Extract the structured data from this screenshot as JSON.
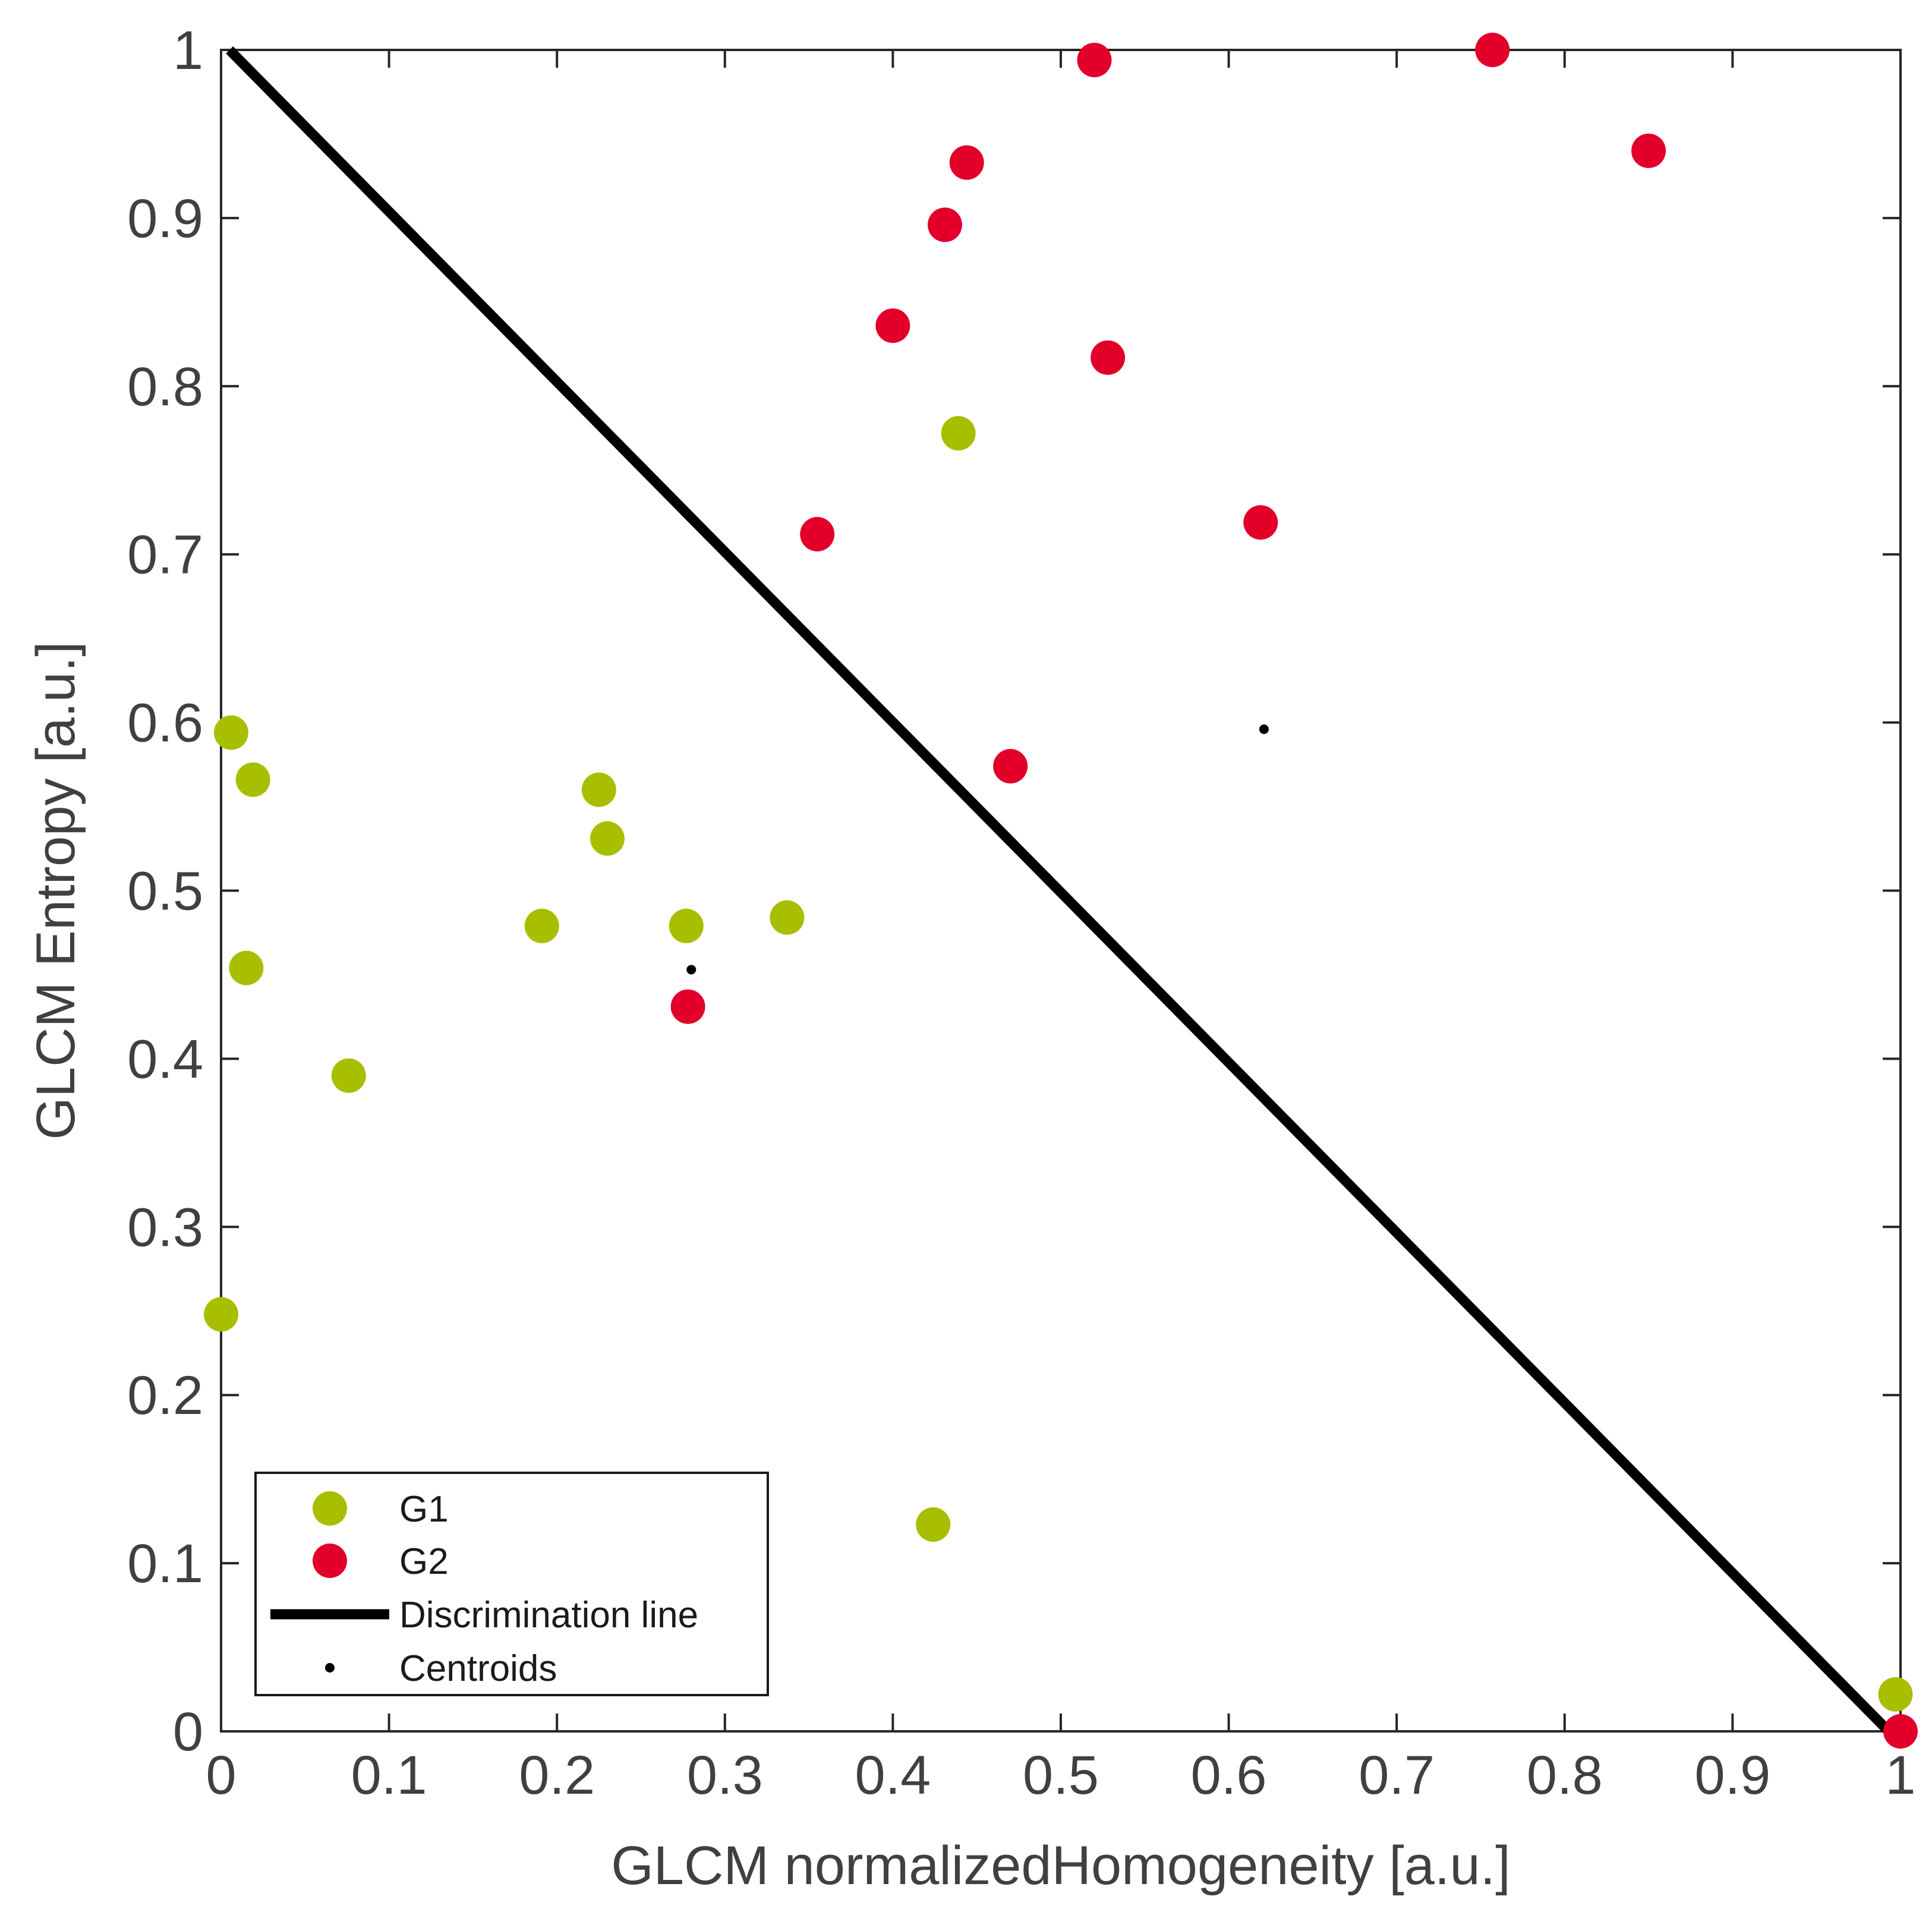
{
  "chart_data": {
    "type": "scatter",
    "xlabel": "GLCM normalizedHomogeneity [a.u.]",
    "ylabel": "GLCM Entropy [a.u.]",
    "xlim": [
      0,
      1
    ],
    "ylim": [
      0,
      1
    ],
    "x_ticks": [
      "0",
      "0.1",
      "0.2",
      "0.3",
      "0.4",
      "0.5",
      "0.6",
      "0.7",
      "0.8",
      "0.9",
      "1"
    ],
    "y_ticks": [
      "0",
      "0.1",
      "0.2",
      "0.3",
      "0.4",
      "0.5",
      "0.6",
      "0.7",
      "0.8",
      "0.9",
      "1"
    ],
    "grid": false,
    "box": true,
    "legend_position": "bottom-left",
    "series": [
      {
        "name": "G1",
        "color": "#a8bf00",
        "points": [
          {
            "x": 0.006,
            "y": 0.594
          },
          {
            "x": 0.019,
            "y": 0.566
          },
          {
            "x": 0.015,
            "y": 0.454
          },
          {
            "x": 0.076,
            "y": 0.39
          },
          {
            "x": 0.0,
            "y": 0.248
          },
          {
            "x": 0.191,
            "y": 0.479
          },
          {
            "x": 0.225,
            "y": 0.56
          },
          {
            "x": 0.23,
            "y": 0.531
          },
          {
            "x": 0.277,
            "y": 0.479
          },
          {
            "x": 0.337,
            "y": 0.484
          },
          {
            "x": 0.439,
            "y": 0.772
          },
          {
            "x": 0.424,
            "y": 0.123
          },
          {
            "x": 0.997,
            "y": 0.022
          }
        ]
      },
      {
        "name": "G2",
        "color": "#e2002b",
        "points": [
          {
            "x": 0.52,
            "y": 0.994
          },
          {
            "x": 0.757,
            "y": 1.0
          },
          {
            "x": 0.85,
            "y": 0.94
          },
          {
            "x": 0.444,
            "y": 0.933
          },
          {
            "x": 0.431,
            "y": 0.896
          },
          {
            "x": 0.4,
            "y": 0.836
          },
          {
            "x": 0.528,
            "y": 0.817
          },
          {
            "x": 0.355,
            "y": 0.712
          },
          {
            "x": 0.619,
            "y": 0.719
          },
          {
            "x": 0.47,
            "y": 0.574
          },
          {
            "x": 0.278,
            "y": 0.431
          },
          {
            "x": 1.0,
            "y": 0.0
          }
        ]
      }
    ],
    "line": {
      "name": "Discrimination line",
      "color": "#000000",
      "points": [
        {
          "x": 0.005,
          "y": 1.0
        },
        {
          "x": 0.993,
          "y": 0.0
        }
      ]
    },
    "centroids": {
      "name": "Centroids",
      "color": "#000000",
      "points": [
        {
          "x": 0.28,
          "y": 0.453
        },
        {
          "x": 0.621,
          "y": 0.596
        }
      ]
    }
  }
}
